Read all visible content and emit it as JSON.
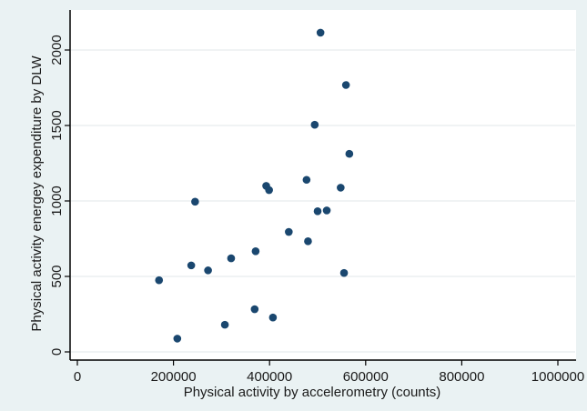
{
  "chart_data": {
    "type": "scatter",
    "title": "",
    "xlabel": "Physical activity by accelerometry (counts)",
    "ylabel": "Physical activity energey expenditure by DLW",
    "xlim": [
      0,
      1000000
    ],
    "ylim": [
      0,
      2200
    ],
    "x_ticks": [
      0,
      200000,
      400000,
      600000,
      800000,
      1000000
    ],
    "x_tick_labels": [
      "0",
      "200000",
      "400000",
      "600000",
      "800000",
      "1000000"
    ],
    "y_ticks": [
      0,
      500,
      1000,
      1500,
      2000
    ],
    "y_tick_labels": [
      "0",
      "500",
      "1000",
      "1500",
      "2000"
    ],
    "grid": "horizontal",
    "colors": {
      "marker": "#1a476f",
      "plot_background": "#ffffff",
      "outer_background": "#eaf2f3",
      "gridline": "#e6ecee",
      "axis": "#000000"
    },
    "series": [
      {
        "points": [
          {
            "x": 170000,
            "y": 475
          },
          {
            "x": 208000,
            "y": 88
          },
          {
            "x": 237000,
            "y": 573
          },
          {
            "x": 245000,
            "y": 995
          },
          {
            "x": 272000,
            "y": 540
          },
          {
            "x": 307000,
            "y": 180
          },
          {
            "x": 320000,
            "y": 620
          },
          {
            "x": 369000,
            "y": 283
          },
          {
            "x": 371000,
            "y": 667
          },
          {
            "x": 393000,
            "y": 1100
          },
          {
            "x": 399000,
            "y": 1072
          },
          {
            "x": 407000,
            "y": 228
          },
          {
            "x": 440000,
            "y": 795
          },
          {
            "x": 477000,
            "y": 1140
          },
          {
            "x": 480000,
            "y": 733
          },
          {
            "x": 494000,
            "y": 1505
          },
          {
            "x": 500000,
            "y": 932
          },
          {
            "x": 506000,
            "y": 2115
          },
          {
            "x": 519000,
            "y": 937
          },
          {
            "x": 548000,
            "y": 1088
          },
          {
            "x": 555000,
            "y": 523
          },
          {
            "x": 559000,
            "y": 1768
          },
          {
            "x": 566000,
            "y": 1312
          }
        ]
      }
    ]
  }
}
